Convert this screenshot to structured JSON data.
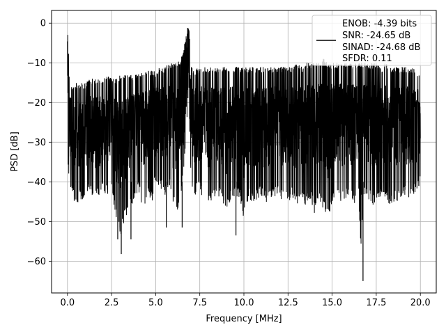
{
  "chart_data": {
    "type": "line",
    "xlabel": "Frequency [MHz]",
    "ylabel": "PSD [dB]",
    "xlim": [
      -0.9,
      20.9
    ],
    "ylim": [
      -68,
      3.2
    ],
    "xticks": [
      0.0,
      2.5,
      5.0,
      7.5,
      10.0,
      12.5,
      15.0,
      17.5,
      20.0
    ],
    "xtick_labels": [
      "0.0",
      "2.5",
      "5.0",
      "7.5",
      "10.0",
      "12.5",
      "15.0",
      "17.5",
      "20.0"
    ],
    "yticks": [
      0,
      -10,
      -20,
      -30,
      -40,
      -50,
      -60
    ],
    "ytick_labels": [
      "0",
      "−10",
      "−20",
      "−30",
      "−40",
      "−50",
      "−60"
    ],
    "grid": true,
    "legend_position": "top-right",
    "legend_entries": [
      "ENOB: -4.39 bits",
      "SNR: -24.65 dB",
      "SINAD: -24.68 dB",
      "SFDR: 0.11"
    ],
    "series": [
      {
        "color": "#000000",
        "x": [
          0.0,
          0.03,
          0.05,
          0.1,
          0.2,
          0.3,
          0.5,
          0.7,
          1.0,
          1.3,
          1.5,
          1.8,
          2.0,
          2.3,
          2.5,
          2.8,
          3.0,
          3.2,
          3.5,
          3.8,
          4.0,
          4.3,
          4.5,
          4.8,
          5.0,
          5.3,
          5.5,
          5.8,
          6.0,
          6.2,
          6.4,
          6.5,
          6.6,
          6.7,
          6.8,
          6.85,
          6.9,
          6.95,
          7.0,
          7.1,
          7.2,
          7.4,
          7.6,
          7.8,
          8.0,
          8.3,
          8.5,
          8.8,
          9.0,
          9.3,
          9.5,
          9.8,
          10.0,
          10.3,
          10.5,
          10.8,
          11.0,
          11.3,
          11.5,
          11.8,
          12.0,
          12.3,
          12.5,
          12.8,
          13.0,
          13.3,
          13.5,
          13.8,
          14.0,
          14.3,
          14.5,
          14.8,
          15.0,
          15.3,
          15.5,
          15.8,
          16.0,
          16.3,
          16.5,
          16.7,
          16.8,
          17.0,
          17.3,
          17.5,
          17.8,
          18.0,
          18.3,
          18.5,
          18.8,
          19.0,
          19.3,
          19.5,
          19.8,
          20.0
        ],
        "upper": [
          -1,
          -2,
          -5,
          -13,
          -15,
          -16,
          -15,
          -15,
          -15,
          -14,
          -14,
          -14,
          -14,
          -13,
          -14,
          -14,
          -13,
          -13,
          -13,
          -13,
          -13,
          -12,
          -12,
          -12,
          -12,
          -11,
          -11,
          -10,
          -10,
          -10,
          -9,
          -8,
          -6,
          -4,
          -1,
          0,
          -1,
          -5,
          -10,
          -12,
          -12,
          -11,
          -11,
          -11,
          -11,
          -11,
          -11,
          -11,
          -11,
          -11,
          -11,
          -11,
          -11,
          -11,
          -11,
          -11,
          -11,
          -11,
          -11,
          -11,
          -11,
          -11,
          -11,
          -11,
          -10,
          -11,
          -10,
          -10,
          -10,
          -10,
          -9,
          -10,
          -10,
          -10,
          -10,
          -10,
          -10,
          -10,
          -10,
          -10,
          -10,
          -10,
          -10,
          -10,
          -11,
          -10,
          -11,
          -11,
          -11,
          -11,
          -11,
          -11,
          -12,
          -12
        ],
        "lower": [
          -14,
          -30,
          -38,
          -40,
          -42,
          -44,
          -46,
          -45,
          -44,
          -42,
          -45,
          -44,
          -42,
          -44,
          -43,
          -50,
          -55,
          -50,
          -48,
          -45,
          -42,
          -48,
          -44,
          -45,
          -40,
          -42,
          -44,
          -42,
          -46,
          -48,
          -44,
          -42,
          -38,
          -30,
          -22,
          -20,
          -24,
          -32,
          -40,
          -42,
          -44,
          -42,
          -44,
          -43,
          -46,
          -45,
          -44,
          -45,
          -48,
          -44,
          -44,
          -45,
          -50,
          -44,
          -46,
          -44,
          -44,
          -46,
          -44,
          -44,
          -44,
          -45,
          -45,
          -44,
          -46,
          -44,
          -46,
          -45,
          -48,
          -45,
          -47,
          -49,
          -45,
          -44,
          -45,
          -44,
          -44,
          -46,
          -43,
          -65,
          -44,
          -44,
          -46,
          -45,
          -44,
          -44,
          -46,
          -45,
          -45,
          -44,
          -44,
          -44,
          -43,
          -40
        ]
      }
    ],
    "outliers": [
      {
        "x": 2.85,
        "y": -54.5
      },
      {
        "x": 3.05,
        "y": -58.2
      },
      {
        "x": 3.6,
        "y": -54.5
      },
      {
        "x": 5.6,
        "y": -51.5
      },
      {
        "x": 6.5,
        "y": -51.5
      },
      {
        "x": 9.55,
        "y": -53.5
      },
      {
        "x": 16.75,
        "y": -65.0
      }
    ]
  }
}
